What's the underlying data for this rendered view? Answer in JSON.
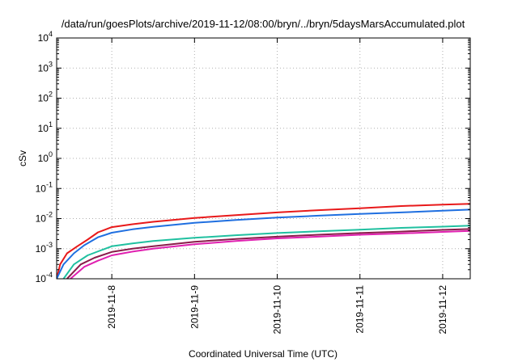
{
  "chart_data": {
    "type": "line",
    "title": "/data/run/goesPlots/archive/2019-11-12/08:00/bryn/../bryn/5daysMarsAccumulated.plot",
    "xlabel": "Coordinated Universal Time (UTC)",
    "ylabel": "cSv",
    "yscale": "log",
    "grid": true,
    "xlim": [
      "2019-11-07T08:00",
      "2019-11-12T08:00"
    ],
    "ylim": [
      0.0001,
      10000
    ],
    "x_ticks": [
      "2019-11-8",
      "2019-11-9",
      "2019-11-10",
      "2019-11-11",
      "2019-11-12"
    ],
    "y_ticks": [
      {
        "value": 0.0001,
        "base": "10",
        "exp": "-4"
      },
      {
        "value": 0.001,
        "base": "10",
        "exp": "-3"
      },
      {
        "value": 0.01,
        "base": "10",
        "exp": "-2"
      },
      {
        "value": 0.1,
        "base": "10",
        "exp": "-1"
      },
      {
        "value": 1,
        "base": "10",
        "exp": "0"
      },
      {
        "value": 10,
        "base": "10",
        "exp": "1"
      },
      {
        "value": 100,
        "base": "10",
        "exp": "2"
      },
      {
        "value": 1000,
        "base": "10",
        "exp": "3"
      },
      {
        "value": 10000,
        "base": "10",
        "exp": "4"
      }
    ],
    "series": [
      {
        "color": "#e8191a",
        "points": [
          [
            "2019-11-07T08:00",
            0.0001
          ],
          [
            "2019-11-07T09:00",
            0.0003
          ],
          [
            "2019-11-07T11:00",
            0.0007
          ],
          [
            "2019-11-07T14:00",
            0.0012
          ],
          [
            "2019-11-07T17:00",
            0.002
          ],
          [
            "2019-11-07T20:00",
            0.0035
          ],
          [
            "2019-11-08T00:00",
            0.0052
          ],
          [
            "2019-11-08T06:00",
            0.0065
          ],
          [
            "2019-11-08T12:00",
            0.0078
          ],
          [
            "2019-11-09T00:00",
            0.0105
          ],
          [
            "2019-11-09T12:00",
            0.013
          ],
          [
            "2019-11-10T00:00",
            0.016
          ],
          [
            "2019-11-10T12:00",
            0.019
          ],
          [
            "2019-11-11T00:00",
            0.022
          ],
          [
            "2019-11-11T12:00",
            0.026
          ],
          [
            "2019-11-12T00:00",
            0.029
          ],
          [
            "2019-11-12T08:00",
            0.031
          ]
        ]
      },
      {
        "color": "#1f6fe0",
        "points": [
          [
            "2019-11-07T08:00",
            0.0001
          ],
          [
            "2019-11-07T10:00",
            0.0003
          ],
          [
            "2019-11-07T13:00",
            0.0007
          ],
          [
            "2019-11-07T16:00",
            0.0013
          ],
          [
            "2019-11-07T20:00",
            0.0024
          ],
          [
            "2019-11-08T00:00",
            0.0034
          ],
          [
            "2019-11-08T06:00",
            0.0044
          ],
          [
            "2019-11-08T12:00",
            0.0053
          ],
          [
            "2019-11-09T00:00",
            0.0072
          ],
          [
            "2019-11-09T12:00",
            0.009
          ],
          [
            "2019-11-10T00:00",
            0.0108
          ],
          [
            "2019-11-10T12:00",
            0.0125
          ],
          [
            "2019-11-11T00:00",
            0.0142
          ],
          [
            "2019-11-11T12:00",
            0.016
          ],
          [
            "2019-11-12T00:00",
            0.0182
          ],
          [
            "2019-11-12T08:00",
            0.0198
          ]
        ]
      },
      {
        "color": "#20c0a0",
        "points": [
          [
            "2019-11-07T10:00",
            0.0001
          ],
          [
            "2019-11-07T13:00",
            0.0003
          ],
          [
            "2019-11-07T17:00",
            0.0006
          ],
          [
            "2019-11-07T21:00",
            0.0009
          ],
          [
            "2019-11-08T00:00",
            0.0012
          ],
          [
            "2019-11-08T06:00",
            0.0015
          ],
          [
            "2019-11-08T12:00",
            0.0018
          ],
          [
            "2019-11-09T00:00",
            0.0023
          ],
          [
            "2019-11-09T12:00",
            0.0028
          ],
          [
            "2019-11-10T00:00",
            0.0033
          ],
          [
            "2019-11-10T12:00",
            0.0038
          ],
          [
            "2019-11-11T00:00",
            0.0043
          ],
          [
            "2019-11-11T12:00",
            0.0049
          ],
          [
            "2019-11-12T00:00",
            0.0054
          ],
          [
            "2019-11-12T08:00",
            0.0058
          ]
        ]
      },
      {
        "color": "#8a1c4a",
        "points": [
          [
            "2019-11-07T11:00",
            0.0001
          ],
          [
            "2019-11-07T15:00",
            0.0003
          ],
          [
            "2019-11-07T19:00",
            0.0005
          ],
          [
            "2019-11-08T00:00",
            0.00078
          ],
          [
            "2019-11-08T06:00",
            0.001
          ],
          [
            "2019-11-08T12:00",
            0.0012
          ],
          [
            "2019-11-09T00:00",
            0.0017
          ],
          [
            "2019-11-09T12:00",
            0.0021
          ],
          [
            "2019-11-10T00:00",
            0.0025
          ],
          [
            "2019-11-10T12:00",
            0.0029
          ],
          [
            "2019-11-11T00:00",
            0.0033
          ],
          [
            "2019-11-11T12:00",
            0.0037
          ],
          [
            "2019-11-12T00:00",
            0.0042
          ],
          [
            "2019-11-12T08:00",
            0.0045
          ]
        ]
      },
      {
        "color": "#e020b0",
        "points": [
          [
            "2019-11-07T12:00",
            0.0001
          ],
          [
            "2019-11-07T16:00",
            0.00025
          ],
          [
            "2019-11-07T20:00",
            0.0004
          ],
          [
            "2019-11-08T00:00",
            0.0006
          ],
          [
            "2019-11-08T06:00",
            0.0008
          ],
          [
            "2019-11-08T12:00",
            0.001
          ],
          [
            "2019-11-09T00:00",
            0.0014
          ],
          [
            "2019-11-09T12:00",
            0.0018
          ],
          [
            "2019-11-10T00:00",
            0.0022
          ],
          [
            "2019-11-10T12:00",
            0.0025
          ],
          [
            "2019-11-11T00:00",
            0.0029
          ],
          [
            "2019-11-11T12:00",
            0.0032
          ],
          [
            "2019-11-12T00:00",
            0.0036
          ],
          [
            "2019-11-12T08:00",
            0.0039
          ]
        ]
      }
    ]
  }
}
